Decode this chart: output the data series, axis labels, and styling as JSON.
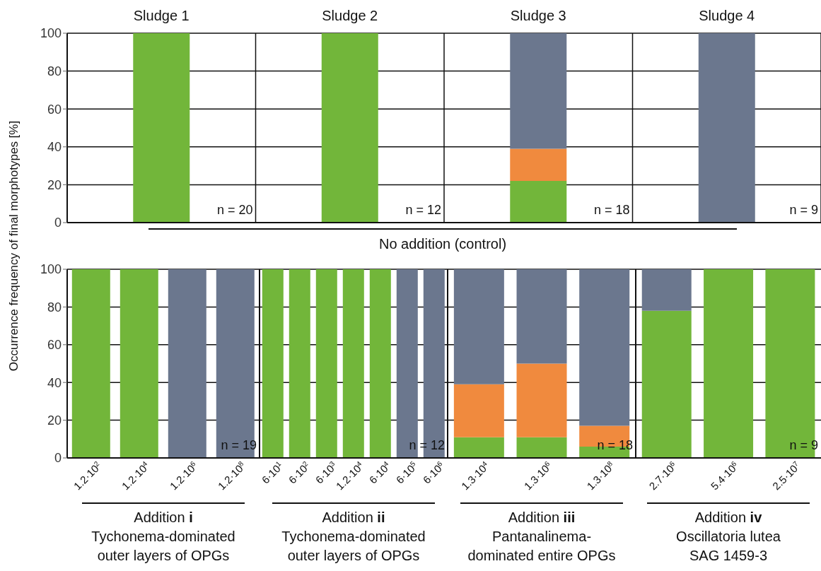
{
  "chart_data": [
    {
      "type": "bar",
      "ylabel": "Occurrence frequency of final morphotypes [%]",
      "categories": [
        "Sludge 1",
        "Sludge 2",
        "Sludge 3",
        "Sludge 4"
      ],
      "stacked": true,
      "series": [
        {
          "color": "#72b63a",
          "values": [
            100,
            100,
            22,
            null
          ]
        },
        {
          "color": "#f08a3e",
          "values": [
            null,
            null,
            17,
            null
          ]
        },
        {
          "color": "#6b778e",
          "values": [
            null,
            null,
            61,
            100
          ]
        }
      ],
      "ylim": [
        0,
        100
      ],
      "yticks": [
        0,
        20,
        40,
        60,
        80,
        100
      ],
      "grid": true,
      "annotations": [
        "n = 20",
        "n = 12",
        "n = 18",
        "n = 9",
        "No addition (control)"
      ]
    },
    {
      "type": "bar",
      "xlabel": "Addition i",
      "categories": [
        "1.2·10$^{2}$",
        "1.2·10$^{4}$",
        "1.2·10$^{6}$",
        "1.2·10$^{8}$"
      ],
      "stacked": true,
      "series": [
        {
          "color": "#72b63a",
          "values": [
            100,
            100,
            null,
            null
          ]
        },
        {
          "color": "#6b778e",
          "values": [
            null,
            null,
            100,
            100
          ]
        }
      ],
      "ylim": [
        0,
        100
      ],
      "yticks": [
        0,
        20,
        40,
        60,
        80,
        100
      ],
      "grid": "y",
      "annotations": [
        "n = 19",
        "Tychonema-dominated",
        "outer layers of OPGs"
      ]
    },
    {
      "type": "bar",
      "xlabel": "Addition ii",
      "categories": [
        "6·10$^{1}$",
        "6·10$^{2}$",
        "6·10$^{3}$",
        "1.2·10$^{4}$",
        "6·10$^{4}$",
        "6·10$^{5}$",
        "6·10$^{6}$"
      ],
      "stacked": true,
      "series": [
        {
          "color": "#72b63a",
          "values": [
            100,
            100,
            100,
            100,
            100,
            null,
            null
          ]
        },
        {
          "color": "#6b778e",
          "values": [
            null,
            null,
            null,
            null,
            null,
            100,
            100
          ]
        }
      ],
      "ylim": [
        0,
        100
      ],
      "yticks": [
        0,
        20,
        40,
        60,
        80,
        100
      ],
      "grid": "y",
      "tick_labels": "x",
      "annotations": [
        "n = 12",
        "Tychonema-dominated",
        "outer layers of OPGs"
      ]
    },
    {
      "type": "bar",
      "xlabel": "Addition iii",
      "categories": [
        "1.3·10$^{4}$",
        "1.3·10$^{6}$",
        "1.3·10$^{8}$"
      ],
      "stacked": true,
      "series": [
        {
          "color": "#72b63a",
          "values": [
            11,
            11,
            6
          ]
        },
        {
          "color": "#f08a3e",
          "values": [
            28,
            39,
            11
          ]
        },
        {
          "color": "#6b778e",
          "values": [
            61,
            50,
            83
          ]
        }
      ],
      "ylim": [
        0,
        100
      ],
      "yticks": [
        0,
        20,
        40,
        60,
        80,
        100
      ],
      "grid": "y",
      "tick_labels": "x",
      "annotations": [
        "n = 18",
        "Pantanalinema-",
        "dominated entire OPGs"
      ]
    },
    {
      "type": "bar",
      "xlabel": "Addition iv",
      "categories": [
        "2.7·10$^{6}$",
        "5.4·10$^{6}$",
        "2.5·10$^{7}$"
      ],
      "stacked": true,
      "series": [
        {
          "color": "#72b63a",
          "values": [
            78,
            100,
            100
          ]
        },
        {
          "color": "#6b778e",
          "values": [
            22,
            null,
            null
          ]
        }
      ],
      "ylim": [
        0,
        100
      ],
      "yticks": [
        0,
        20,
        40,
        60,
        80,
        100
      ],
      "grid": "y",
      "tick_labels": "x",
      "annotations": [
        "n = 9",
        "Oscillatoria lutea",
        "SAG 1459-3"
      ]
    }
  ]
}
